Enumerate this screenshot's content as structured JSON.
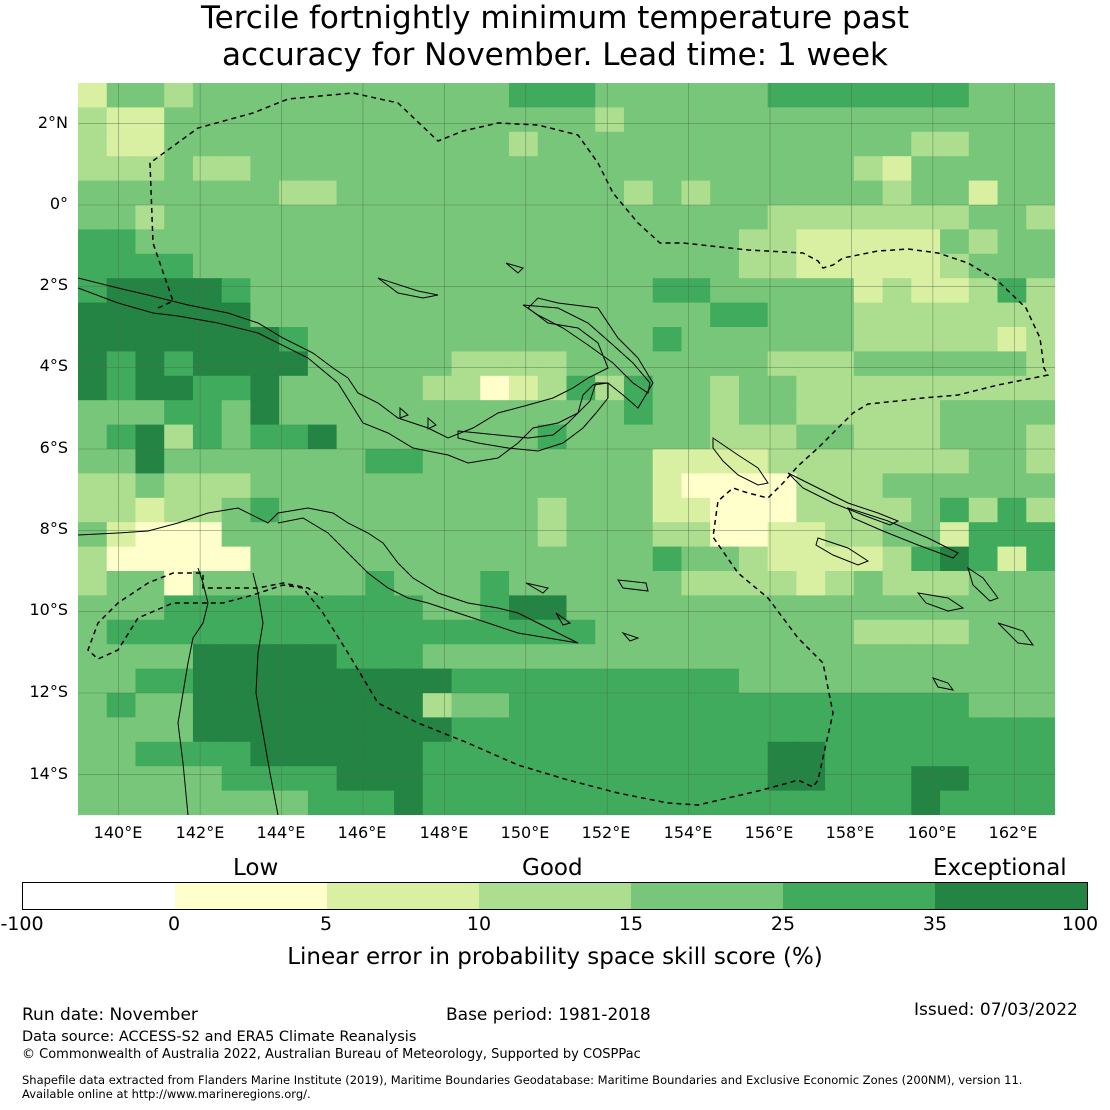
{
  "title": {
    "line1": "Tercile fortnightly minimum temperature past",
    "line2": "accuracy for November. Lead time: 1 week"
  },
  "map": {
    "lat_labels": [
      "2°N",
      "0°",
      "2°S",
      "4°S",
      "6°S",
      "8°S",
      "10°S",
      "12°S",
      "14°S"
    ],
    "lon_labels": [
      "140°E",
      "142°E",
      "144°E",
      "146°E",
      "148°E",
      "150°E",
      "152°E",
      "154°E",
      "156°E",
      "158°E",
      "160°E",
      "162°E"
    ],
    "lat_values": [
      2,
      0,
      -2,
      -4,
      -6,
      -8,
      -10,
      -12,
      -14
    ],
    "lon_values": [
      140,
      142,
      144,
      146,
      148,
      150,
      152,
      154,
      156,
      158,
      160,
      162
    ],
    "lon_range": [
      139,
      163
    ],
    "lat_range": [
      -15,
      3
    ],
    "grid_res_deg": 0.83,
    "grid": "on",
    "ocean_line_color": "#000000",
    "category_colors": {
      "0": "#ffffff",
      "1": "#ffffcc",
      "2": "#d9f0a3",
      "3": "#addd8e",
      "4": "#78c679",
      "5": "#41ab5d",
      "6": "#238443"
    },
    "cells": [
      "2443444444444445554444445555555444",
      "3224444444444444443444444444444444",
      "3224444444444443444444444444433444",
      "3334334444444444444444444443244444",
      "4444444334444444444343444444344244",
      "4434444444444444444444443333333443",
      "5544444444444444444444433222224344",
      "5555444444444444444444433222223444",
      "5666654444444444444455444442322353",
      "6666664444444444444444554443333333",
      "6666666544444444444454444443333323",
      "6565666644444333344444443334444443",
      "6566556444443312353544344333333333",
      "4445546444444444444544344333334444",
      "4563545564444444544444333443334443",
      "4464444444554444444422223333333443",
      "3343334444444444444421111333444444",
      "3323345444444444344422111333345353",
      "4211144444444444344433112233442555",
      "3111114444444444444454432222356525",
      "3441444444544454444443333234333444",
      "4445555555554456644444444444444444",
      "4555555555555555554444444443333444",
      "4444666665554444444444444444444444",
      "4455666666666555555555544444444444",
      "4544666666663445555555555555555444",
      "4444666666666555555555555555555555",
      "4455556666665555555555556655555555",
      "4444455556665555555555556655566555",
      "4444444455565555555555555555565555"
    ]
  },
  "colorbar": {
    "low_label": "Low",
    "good_label": "Good",
    "exceptional_label": "Exceptional",
    "ticks": [
      "-100",
      "0",
      "5",
      "10",
      "15",
      "25",
      "35",
      "100"
    ],
    "colors": [
      "#ffffff",
      "#ffffcc",
      "#d9f0a3",
      "#addd8e",
      "#78c679",
      "#41ab5d",
      "#238443"
    ],
    "label": "Linear error in probability space skill score (%)"
  },
  "footer": {
    "run_date": "Run date: November",
    "base_period": "Base period: 1981-2018",
    "issued": "Issued: 07/03/2022",
    "data_source": "Data source: ACCESS-S2 and ERA5 Climate Reanalysis",
    "copyright": "© Commonwealth of Australia 2022, Australian Bureau of Meteorology, Supported by COSPPac",
    "shapefile_line1": "Shapefile data extracted from Flanders Marine Institute (2019), Maritime Boundaries Geodatabase: Maritime Boundaries and Exclusive Economic Zones (200NM), version 11.",
    "shapefile_line2": "Available online at http://www.marineregions.org/."
  }
}
